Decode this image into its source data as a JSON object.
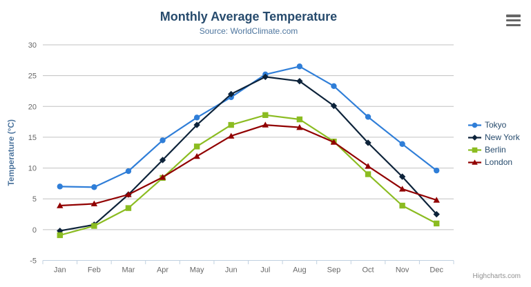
{
  "credits": {
    "label": "Highcharts.com"
  },
  "menu": {
    "icon": "hamburger-menu-icon"
  },
  "theme": {
    "title_color": "#274b6d",
    "subtitle_color": "#4d759e",
    "axis_label_color": "#666666",
    "axis_title_color": "#4d759e",
    "gridline_color": "#c0c0c0",
    "axis_line_color": "#c0d0e0",
    "legend_text_color": "#274b6d",
    "credits_color": "#909090",
    "menu_icon_color": "#666666"
  },
  "chart_data": {
    "type": "line",
    "title": "Monthly Average Temperature",
    "subtitle": "Source: WorldClimate.com",
    "categories": [
      "Jan",
      "Feb",
      "Mar",
      "Apr",
      "May",
      "Jun",
      "Jul",
      "Aug",
      "Sep",
      "Oct",
      "Nov",
      "Dec"
    ],
    "xlabel": "",
    "ylabel": "Temperature (°C)",
    "ylim": [
      -5,
      30
    ],
    "yticks": [
      -5,
      0,
      5,
      10,
      15,
      20,
      25,
      30
    ],
    "grid": true,
    "legend_position": "right",
    "series": [
      {
        "name": "Tokyo",
        "color": "#2f7ed8",
        "marker": "circle",
        "values": [
          7.0,
          6.9,
          9.5,
          14.5,
          18.2,
          21.5,
          25.2,
          26.5,
          23.3,
          18.3,
          13.9,
          9.6
        ]
      },
      {
        "name": "New York",
        "color": "#0d233a",
        "marker": "diamond",
        "values": [
          -0.2,
          0.8,
          5.7,
          11.3,
          17.0,
          22.0,
          24.8,
          24.1,
          20.1,
          14.1,
          8.6,
          2.5
        ]
      },
      {
        "name": "Berlin",
        "color": "#8bbc21",
        "marker": "square",
        "values": [
          -0.9,
          0.6,
          3.5,
          8.4,
          13.5,
          17.0,
          18.6,
          17.9,
          14.3,
          9.0,
          3.9,
          1.0
        ]
      },
      {
        "name": "London",
        "color": "#910000",
        "marker": "triangle",
        "values": [
          3.9,
          4.2,
          5.7,
          8.5,
          11.9,
          15.2,
          17.0,
          16.6,
          14.2,
          10.3,
          6.6,
          4.8
        ]
      }
    ]
  }
}
